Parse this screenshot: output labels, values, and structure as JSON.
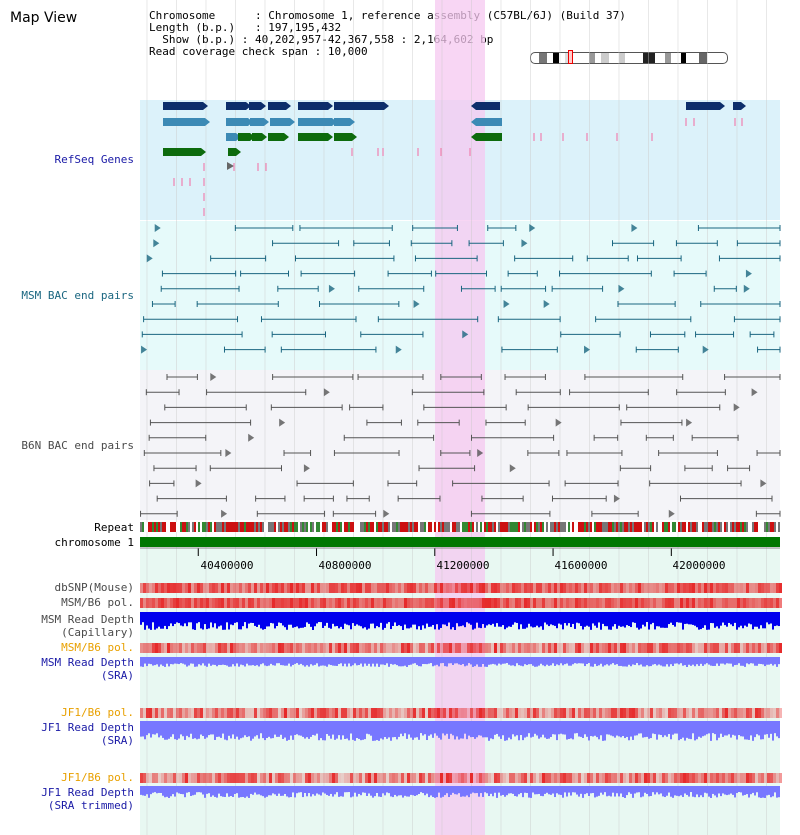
{
  "page": {
    "title": "Map View"
  },
  "info": {
    "chromosome_label": "Chromosome",
    "chromosome_value": "Chromosome 1, reference assembly (C57BL/6J) (Build 37)",
    "length_label": "Length (b.p.)",
    "length_value": "197,195,432",
    "show_label": "Show (b.p.)",
    "show_value": "40,202,957-42,367,558 : 2,164,602 bp",
    "coverage_label": "Read coverage check span",
    "coverage_value": "10,000"
  },
  "ideogram": {
    "selected_position_fraction": 0.21
  },
  "tracks": {
    "refseq_genes": "RefSeq Genes",
    "msm_bac": "MSM BAC end pairs",
    "b6n_bac": "B6N BAC end pairs",
    "repeat": "Repeat",
    "chromosome": "chromosome 1",
    "dbsnp": "dbSNP(Mouse)",
    "msm_b6_pol_1": "MSM/B6 pol.",
    "msm_read_depth_cap_1": "MSM Read Depth",
    "msm_read_depth_cap_2": "(Capillary)",
    "msm_b6_pol_2": "MSM/B6 pol.",
    "msm_read_depth_sra_1": "MSM Read Depth",
    "msm_read_depth_sra_2": "(SRA)",
    "jf1_b6_pol_1": "JF1/B6 pol.",
    "jf1_read_depth_sra_1": "JF1 Read Depth",
    "jf1_read_depth_sra_2": "(SRA)",
    "jf1_b6_pol_2": "JF1/B6 pol.",
    "jf1_read_depth_trim_1": "JF1 Read Depth",
    "jf1_read_depth_trim_2": "(SRA trimmed)"
  },
  "axis": {
    "ticks": [
      "40400000",
      "40800000",
      "41200000",
      "41600000",
      "42000000"
    ],
    "tick_values": [
      40400000,
      40800000,
      41200000,
      41600000,
      42000000
    ],
    "range": [
      40202957,
      42367558
    ]
  },
  "highlight": {
    "start": 41200000,
    "end": 41370000
  },
  "colors": {
    "refseq_bg": "#dcf2fa",
    "bac_bg": "#e6fafa",
    "highlight": "#f7d8f3",
    "gene_navy": "#0d2e6b",
    "gene_blue": "#3c8ab5",
    "gene_green": "#0d6b0d",
    "msm_line": "#1a6680",
    "b6n_line": "#555555",
    "chromosome_bar": "#007700",
    "depth_dark": "#0000ee",
    "depth_light": "#7777ff"
  }
}
